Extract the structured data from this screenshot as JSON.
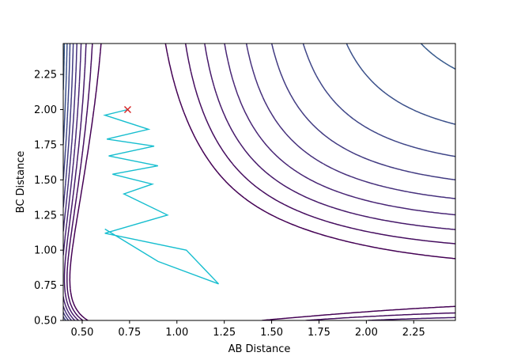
{
  "chart_data": {
    "type": "contour",
    "xlabel": "AB Distance",
    "ylabel": "BC Distance",
    "xlim": [
      0.4,
      2.47
    ],
    "ylim": [
      0.5,
      2.47
    ],
    "xticks": [
      "0.50",
      "0.75",
      "1.00",
      "1.25",
      "1.50",
      "1.75",
      "2.00",
      "2.25"
    ],
    "yticks": [
      "0.50",
      "0.75",
      "1.00",
      "1.25",
      "1.50",
      "1.75",
      "2.00",
      "2.25"
    ],
    "grid": false,
    "legend": "none",
    "colormap": "viridis",
    "potential": {
      "kind": "LEPS-like (Morse sum)",
      "De": 1.0,
      "re": 0.74,
      "beta": 2.0,
      "coupling": 0.35,
      "contour_levels": [
        -0.95,
        -0.85,
        -0.75,
        -0.65,
        -0.55,
        -0.45,
        -0.35,
        -0.25,
        -0.15,
        -0.05,
        0.05,
        0.15,
        0.25,
        0.4,
        0.6,
        0.8,
        1.0,
        1.3,
        1.6,
        2.0,
        2.5,
        3.0,
        3.6,
        4.2,
        5.0,
        6.0
      ]
    },
    "trajectory": {
      "color": "#17becf",
      "points": [
        [
          0.74,
          2.0
        ],
        [
          0.62,
          1.96
        ],
        [
          0.85,
          1.86
        ],
        [
          0.63,
          1.79
        ],
        [
          0.88,
          1.74
        ],
        [
          0.64,
          1.67
        ],
        [
          0.9,
          1.6
        ],
        [
          0.66,
          1.54
        ],
        [
          0.87,
          1.47
        ],
        [
          0.72,
          1.4
        ],
        [
          0.95,
          1.25
        ],
        [
          0.62,
          1.12
        ],
        [
          1.05,
          1.0
        ],
        [
          1.22,
          0.76
        ],
        [
          0.9,
          0.92
        ],
        [
          0.62,
          1.15
        ]
      ]
    },
    "marker": {
      "symbol": "x",
      "color": "#d62728",
      "x": 0.74,
      "y": 2.0
    }
  }
}
